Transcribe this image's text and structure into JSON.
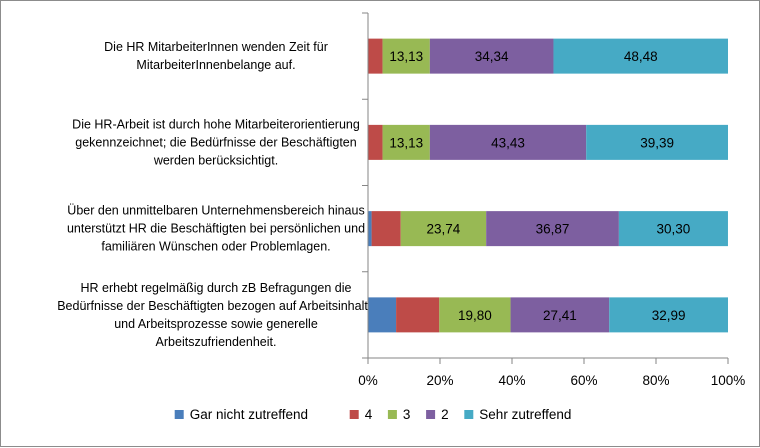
{
  "chart_data": {
    "type": "bar",
    "orientation": "horizontal",
    "stacked": "percent",
    "categories": [
      [
        "Die HR MitarbeiterInnen wenden Zeit für",
        "MitarbeiterInnenbelange auf."
      ],
      [
        "Die HR-Arbeit ist durch hohe Mitarbeiterorientierung",
        "gekennzeichnet; die Bedürfnisse der Beschäftigten",
        "werden berücksichtigt."
      ],
      [
        "Über den unmittelbaren Unternehmensbereich hinaus",
        "unterstützt HR die Beschäftigten bei persönlichen und",
        "familiären Wünschen oder Problemlagen."
      ],
      [
        "HR erhebt regelmäßig durch zB Befragungen die",
        "Bedürfnisse der Beschäftigten bezogen auf Arbeitsinhalte",
        "und Arbeitsprozesse sowie generelle",
        "Arbeitszufriendenheit."
      ]
    ],
    "series": [
      {
        "name": "Gar nicht zutreffend",
        "color": "#4a7ebb",
        "values": [
          0,
          0,
          1.0,
          7.8
        ],
        "labels": [
          "",
          "",
          "",
          ""
        ]
      },
      {
        "name": "4",
        "color": "#be4b48",
        "values": [
          4.05,
          4.05,
          8.08,
          12.0
        ],
        "labels": [
          "",
          "",
          "",
          ""
        ]
      },
      {
        "name": "3",
        "color": "#98b954",
        "values": [
          13.13,
          13.13,
          23.74,
          19.8
        ],
        "labels": [
          "13,13",
          "13,13",
          "23,74",
          "19,80"
        ]
      },
      {
        "name": "2",
        "color": "#7d5fa0",
        "values": [
          34.34,
          43.43,
          36.87,
          27.41
        ],
        "labels": [
          "34,34",
          "43,43",
          "36,87",
          "27,41"
        ]
      },
      {
        "name": "Sehr zutreffend",
        "color": "#46aac5",
        "values": [
          48.48,
          39.39,
          30.3,
          32.99
        ],
        "labels": [
          "48,48",
          "39,39",
          "30,30",
          "32,99"
        ]
      }
    ],
    "xlim": [
      0,
      100
    ],
    "ticks": [
      "0%",
      "20%",
      "40%",
      "60%",
      "80%",
      "100%"
    ],
    "legend_position": "bottom",
    "grid": false
  }
}
